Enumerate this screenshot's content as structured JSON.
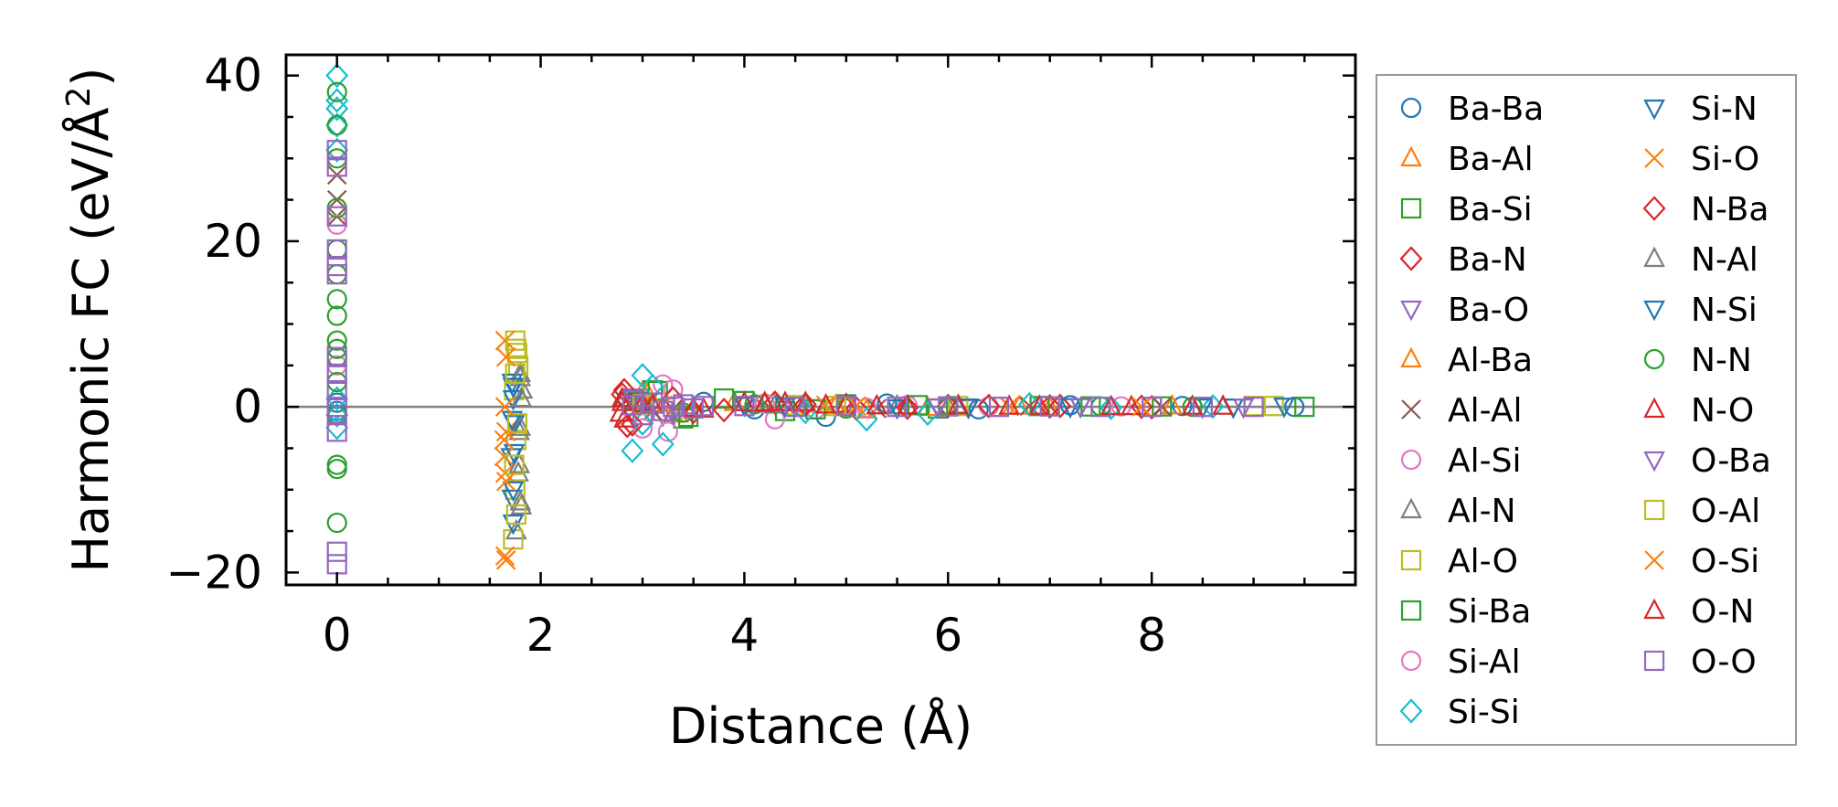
{
  "chart_data": {
    "type": "scatter",
    "xlabel": "Distance (Å)",
    "ylabel_main": "Harmonic FC (eV/Å",
    "ylabel_sup": "2",
    "ylabel_end": ")",
    "xlim": [
      -0.5,
      10.0
    ],
    "ylim": [
      -21.5,
      42.5
    ],
    "xticks": [
      {
        "v": 0,
        "label": "0"
      },
      {
        "v": 2,
        "label": "2"
      },
      {
        "v": 4,
        "label": "4"
      },
      {
        "v": 6,
        "label": "6"
      },
      {
        "v": 8,
        "label": "8"
      }
    ],
    "yticks": [
      {
        "v": -20,
        "label": "−20"
      },
      {
        "v": 0,
        "label": "0"
      },
      {
        "v": 20,
        "label": "20"
      },
      {
        "v": 40,
        "label": "40"
      }
    ],
    "reference_line_y": 0,
    "grid": false,
    "legend_placement": "outside-right",
    "legend_columns": 2,
    "series": [
      {
        "name": "Ba-Ba",
        "marker": "circle",
        "color": "#1f77b4",
        "points": [
          [
            0,
            0.5
          ],
          [
            0,
            -0.5
          ],
          [
            3.6,
            0.6
          ],
          [
            4.1,
            -0.3
          ],
          [
            4.8,
            -1.2
          ],
          [
            5.4,
            0.4
          ],
          [
            6.3,
            -0.3
          ],
          [
            7.2,
            0.2
          ],
          [
            8.3,
            0.1
          ],
          [
            9.4,
            0
          ]
        ]
      },
      {
        "name": "Ba-Al",
        "marker": "triangle-up",
        "color": "#ff7f0e",
        "points": [
          [
            3.0,
            1.8
          ],
          [
            3.3,
            -0.8
          ],
          [
            3.9,
            0.5
          ],
          [
            4.6,
            0.3
          ],
          [
            5.2,
            -0.4
          ],
          [
            6.1,
            0.2
          ],
          [
            7.0,
            -0.1
          ],
          [
            8.2,
            0.1
          ]
        ]
      },
      {
        "name": "Ba-Si",
        "marker": "square",
        "color": "#2ca02c",
        "points": [
          [
            3.1,
            2.0
          ],
          [
            3.4,
            -1.4
          ],
          [
            3.8,
            1.0
          ],
          [
            4.4,
            -0.5
          ],
          [
            5.0,
            0.3
          ],
          [
            5.9,
            -0.2
          ],
          [
            6.9,
            0.1
          ],
          [
            8.1,
            0.05
          ],
          [
            9.5,
            0
          ]
        ]
      },
      {
        "name": "Ba-N",
        "marker": "diamond",
        "color": "#d62728",
        "points": [
          [
            2.8,
            1.5
          ],
          [
            2.85,
            -2.3
          ],
          [
            3.0,
            0.7
          ],
          [
            3.5,
            -0.6
          ],
          [
            4.3,
            0.5
          ],
          [
            5.1,
            -0.2
          ],
          [
            6.0,
            0.1
          ],
          [
            7.1,
            0.1
          ],
          [
            8.0,
            -0.05
          ]
        ]
      },
      {
        "name": "Ba-O",
        "marker": "triangle-down",
        "color": "#9467bd",
        "points": [
          [
            2.9,
            1.2
          ],
          [
            3.2,
            -1.0
          ],
          [
            4.0,
            0.3
          ],
          [
            5.0,
            0.1
          ],
          [
            6.2,
            -0.1
          ],
          [
            7.3,
            0.05
          ],
          [
            8.8,
            0
          ]
        ]
      },
      {
        "name": "Al-Ba",
        "marker": "triangle-up",
        "color": "#ff7f0e",
        "points": [
          [
            3.05,
            1.6
          ],
          [
            3.35,
            -0.9
          ],
          [
            4.2,
            0.4
          ],
          [
            4.9,
            0.2
          ],
          [
            5.8,
            -0.1
          ],
          [
            6.7,
            0.05
          ]
        ]
      },
      {
        "name": "Al-Al",
        "marker": "x",
        "color": "#8c564b",
        "points": [
          [
            0,
            28
          ],
          [
            0,
            25
          ],
          [
            0,
            23
          ],
          [
            2.9,
            0.8
          ],
          [
            3.1,
            -0.5
          ],
          [
            4.4,
            0.3
          ],
          [
            5.3,
            -0.2
          ],
          [
            6.8,
            0.1
          ],
          [
            8.1,
            0.02
          ]
        ]
      },
      {
        "name": "Al-Si",
        "marker": "circle",
        "color": "#e377c2",
        "points": [
          [
            0,
            22
          ],
          [
            0,
            5
          ],
          [
            3.2,
            2.7
          ],
          [
            3.25,
            -3.0
          ],
          [
            4.3,
            -1.5
          ],
          [
            4.7,
            -0.3
          ],
          [
            5.6,
            0.2
          ],
          [
            7.7,
            0.05
          ]
        ]
      },
      {
        "name": "Al-N",
        "marker": "triangle-up",
        "color": "#7f7f7f",
        "points": [
          [
            1.8,
            4.0
          ],
          [
            1.82,
            2.0
          ],
          [
            1.79,
            -3.0
          ],
          [
            1.78,
            -8.0
          ],
          [
            1.81,
            -12.0
          ],
          [
            1.76,
            -15.0
          ],
          [
            3.0,
            0.6
          ],
          [
            4.1,
            0.3
          ],
          [
            5.5,
            0.1
          ],
          [
            6.9,
            0.05
          ]
        ]
      },
      {
        "name": "Al-O",
        "marker": "square",
        "color": "#bcbd22",
        "points": [
          [
            1.75,
            8.0
          ],
          [
            1.77,
            6.5
          ],
          [
            1.78,
            5.0
          ],
          [
            1.74,
            2.0
          ],
          [
            1.76,
            -4.0
          ],
          [
            1.75,
            -10.0
          ],
          [
            1.73,
            -16.0
          ],
          [
            3.1,
            0.5
          ],
          [
            4.5,
            0.2
          ],
          [
            6.1,
            0.1
          ],
          [
            8.0,
            0
          ],
          [
            9.2,
            0.1
          ]
        ]
      },
      {
        "name": "Si-Ba",
        "marker": "square",
        "color": "#2ca02c",
        "points": [
          [
            3.15,
            1.9
          ],
          [
            3.45,
            -1.2
          ],
          [
            4.0,
            0.7
          ],
          [
            4.7,
            -0.3
          ],
          [
            5.7,
            0.2
          ],
          [
            7.4,
            0.05
          ]
        ]
      },
      {
        "name": "Si-Al",
        "marker": "circle",
        "color": "#e377c2",
        "points": [
          [
            3.3,
            2.1
          ],
          [
            3.0,
            -2.6
          ],
          [
            4.2,
            0.4
          ],
          [
            5.2,
            -0.1
          ],
          [
            6.4,
            0.05
          ]
        ]
      },
      {
        "name": "Si-Si",
        "marker": "diamond",
        "color": "#17becf",
        "points": [
          [
            0,
            40
          ],
          [
            0,
            37
          ],
          [
            0,
            36
          ],
          [
            0,
            34
          ],
          [
            0,
            31
          ],
          [
            0,
            1
          ],
          [
            0,
            -1
          ],
          [
            0,
            -2.5
          ],
          [
            2.9,
            -5.3
          ],
          [
            3.0,
            3.8
          ],
          [
            3.1,
            2.5
          ],
          [
            3.2,
            -4.5
          ],
          [
            3.0,
            -2.0
          ],
          [
            4.6,
            -0.6
          ],
          [
            5.2,
            -1.5
          ],
          [
            5.8,
            -0.8
          ],
          [
            6.8,
            0.3
          ],
          [
            7.6,
            -0.1
          ],
          [
            8.6,
            0.05
          ]
        ]
      },
      {
        "name": "Si-N",
        "marker": "triangle-down",
        "color": "#1f77b4",
        "points": [
          [
            1.72,
            3.0
          ],
          [
            1.73,
            1.0
          ],
          [
            1.74,
            -2.0
          ],
          [
            1.71,
            -6.0
          ],
          [
            1.72,
            -11.0
          ],
          [
            1.73,
            -14.0
          ],
          [
            2.95,
            0.8
          ],
          [
            4.0,
            0.2
          ],
          [
            5.5,
            -0.1
          ],
          [
            7.2,
            0.05
          ],
          [
            8.8,
            0
          ],
          [
            9.3,
            0.1
          ]
        ]
      },
      {
        "name": "Si-O",
        "marker": "x",
        "color": "#ff7f0e",
        "points": [
          [
            1.65,
            8.0
          ],
          [
            1.66,
            -3.0
          ],
          [
            1.64,
            -6.0
          ],
          [
            1.65,
            -8.0
          ],
          [
            1.66,
            -18.5
          ],
          [
            3.0,
            0.4
          ],
          [
            4.8,
            0.2
          ],
          [
            6.6,
            0.05
          ]
        ]
      },
      {
        "name": "N-Ba",
        "marker": "diamond",
        "color": "#d62728",
        "points": [
          [
            2.82,
            2.0
          ],
          [
            2.9,
            -2.1
          ],
          [
            3.3,
            1.0
          ],
          [
            3.8,
            -0.4
          ],
          [
            4.6,
            0.3
          ],
          [
            5.6,
            -0.1
          ],
          [
            6.4,
            0.1
          ],
          [
            7.0,
            0.05
          ],
          [
            7.9,
            0
          ]
        ]
      },
      {
        "name": "N-Al",
        "marker": "triangle-up",
        "color": "#7f7f7f",
        "points": [
          [
            1.8,
            3.5
          ],
          [
            1.81,
            1.0
          ],
          [
            1.8,
            -2.5
          ],
          [
            1.79,
            -7.0
          ],
          [
            1.8,
            -11.5
          ],
          [
            2.95,
            0.5
          ],
          [
            4.3,
            0.2
          ],
          [
            6.0,
            0.05
          ]
        ]
      },
      {
        "name": "N-Si",
        "marker": "triangle-down",
        "color": "#1f77b4",
        "points": [
          [
            1.73,
            2.5
          ],
          [
            1.72,
            -1.5
          ],
          [
            1.74,
            -5.5
          ],
          [
            1.73,
            -10.0
          ],
          [
            3.05,
            0.7
          ],
          [
            4.4,
            0.1
          ],
          [
            6.2,
            0
          ],
          [
            8.5,
            0
          ]
        ]
      },
      {
        "name": "N-N",
        "marker": "circle",
        "color": "#2ca02c",
        "points": [
          [
            0,
            38
          ],
          [
            0,
            34
          ],
          [
            0,
            30
          ],
          [
            0,
            24
          ],
          [
            0,
            19
          ],
          [
            0,
            16
          ],
          [
            0,
            13
          ],
          [
            0,
            11
          ],
          [
            0,
            8
          ],
          [
            0,
            7
          ],
          [
            0,
            6
          ],
          [
            0,
            3
          ],
          [
            0,
            -1
          ],
          [
            0,
            -7
          ],
          [
            0,
            -7.5
          ],
          [
            0,
            -14
          ],
          [
            2.85,
            0.9
          ],
          [
            3.4,
            -0.7
          ],
          [
            4.1,
            0.3
          ],
          [
            5.0,
            -0.2
          ],
          [
            6.0,
            0.1
          ],
          [
            7.5,
            0.05
          ],
          [
            8.4,
            0
          ]
        ]
      },
      {
        "name": "N-O",
        "marker": "triangle-up",
        "color": "#d62728",
        "points": [
          [
            2.8,
            1.0
          ],
          [
            2.78,
            -0.8
          ],
          [
            3.0,
            0.3
          ],
          [
            3.5,
            -0.2
          ],
          [
            4.0,
            0.5
          ],
          [
            4.2,
            0.5
          ],
          [
            4.4,
            0.5
          ],
          [
            4.6,
            0.5
          ],
          [
            5.0,
            0.3
          ],
          [
            5.3,
            0.1
          ],
          [
            6.1,
            0.1
          ],
          [
            6.9,
            0.05
          ],
          [
            7.8,
            0
          ],
          [
            8.4,
            0.05
          ]
        ]
      },
      {
        "name": "O-Ba",
        "marker": "triangle-down",
        "color": "#9467bd",
        "points": [
          [
            2.9,
            1.0
          ],
          [
            3.3,
            -0.8
          ],
          [
            4.5,
            0.2
          ],
          [
            5.9,
            0
          ],
          [
            7.3,
            0.05
          ],
          [
            8.9,
            0
          ]
        ]
      },
      {
        "name": "O-Al",
        "marker": "square",
        "color": "#bcbd22",
        "points": [
          [
            1.76,
            7.0
          ],
          [
            1.75,
            4.0
          ],
          [
            1.77,
            -2.0
          ],
          [
            1.74,
            -7.0
          ],
          [
            1.76,
            -13.0
          ],
          [
            3.0,
            0.3
          ],
          [
            4.9,
            0.1
          ],
          [
            6.5,
            0
          ],
          [
            9.0,
            0.1
          ]
        ]
      },
      {
        "name": "O-Si",
        "marker": "x",
        "color": "#ff7f0e",
        "points": [
          [
            1.66,
            6.0
          ],
          [
            1.65,
            0.0
          ],
          [
            1.64,
            -4.0
          ],
          [
            1.66,
            -9.0
          ],
          [
            1.65,
            -18.0
          ],
          [
            3.2,
            0.2
          ],
          [
            5.1,
            0.1
          ],
          [
            7.9,
            0
          ]
        ]
      },
      {
        "name": "O-N",
        "marker": "triangle-up",
        "color": "#d62728",
        "points": [
          [
            2.8,
            0.5
          ],
          [
            2.82,
            -1.5
          ],
          [
            3.1,
            0.2
          ],
          [
            3.6,
            -0.3
          ],
          [
            4.2,
            0.4
          ],
          [
            4.8,
            0.2
          ],
          [
            5.6,
            0.1
          ],
          [
            6.6,
            0.05
          ],
          [
            7.6,
            0
          ],
          [
            8.7,
            0.05
          ]
        ]
      },
      {
        "name": "O-O",
        "marker": "square",
        "color": "#9467bd",
        "points": [
          [
            0,
            31
          ],
          [
            0,
            29
          ],
          [
            0,
            23
          ],
          [
            0,
            19
          ],
          [
            0,
            17
          ],
          [
            0,
            16
          ],
          [
            0,
            6
          ],
          [
            0,
            4
          ],
          [
            0,
            2
          ],
          [
            0,
            0
          ],
          [
            0,
            -1
          ],
          [
            0,
            -3
          ],
          [
            0,
            -17.5
          ],
          [
            0,
            -19
          ],
          [
            2.9,
            0.2
          ],
          [
            3.0,
            -1.0
          ],
          [
            3.1,
            0.5
          ],
          [
            3.2,
            -0.5
          ],
          [
            3.3,
            0.0
          ],
          [
            3.4,
            0.3
          ],
          [
            3.5,
            -0.2
          ],
          [
            3.6,
            0.1
          ],
          [
            4.0,
            0.1
          ],
          [
            4.5,
            0
          ],
          [
            5.0,
            0.1
          ],
          [
            5.5,
            0
          ],
          [
            6.0,
            0.05
          ],
          [
            6.5,
            0
          ],
          [
            7.0,
            0.05
          ],
          [
            7.5,
            0
          ],
          [
            8.0,
            0
          ],
          [
            8.5,
            0
          ],
          [
            9.0,
            0
          ]
        ]
      }
    ]
  }
}
